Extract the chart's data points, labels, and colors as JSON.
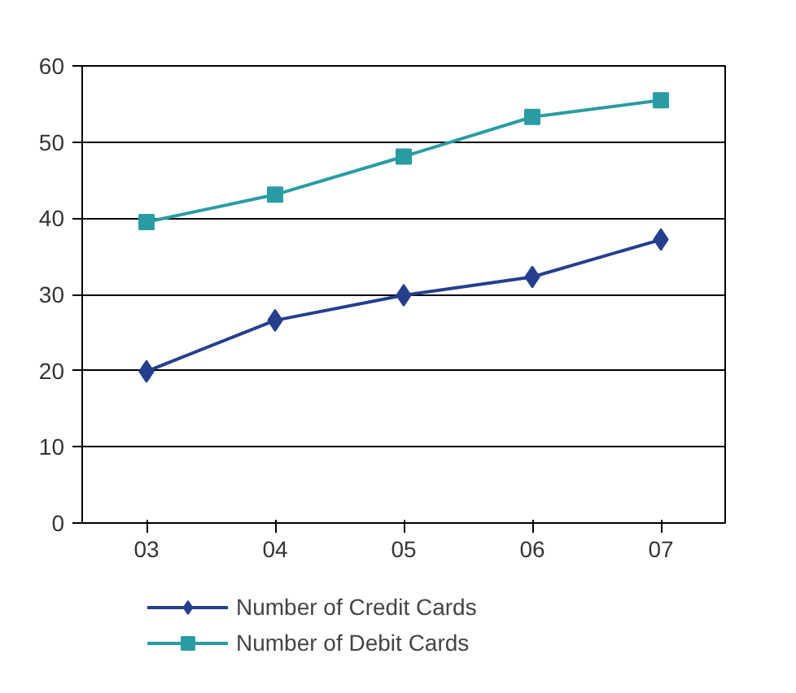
{
  "chart_data": {
    "type": "line",
    "categories": [
      "03",
      "04",
      "05",
      "06",
      "07"
    ],
    "series": [
      {
        "name": "Number of Credit Cards",
        "color": "#253f8e",
        "marker": "diamond",
        "values": [
          19.9,
          26.6,
          29.9,
          32.3,
          37.2
        ]
      },
      {
        "name": "Number of Debit Cards",
        "color": "#2a9ca3",
        "marker": "square",
        "values": [
          39.5,
          43.1,
          48.1,
          53.3,
          55.5
        ]
      }
    ],
    "ylim": [
      0,
      60
    ],
    "yticks": [
      0,
      10,
      20,
      30,
      40,
      50,
      60
    ],
    "grid": "y",
    "legend": "bottom"
  }
}
